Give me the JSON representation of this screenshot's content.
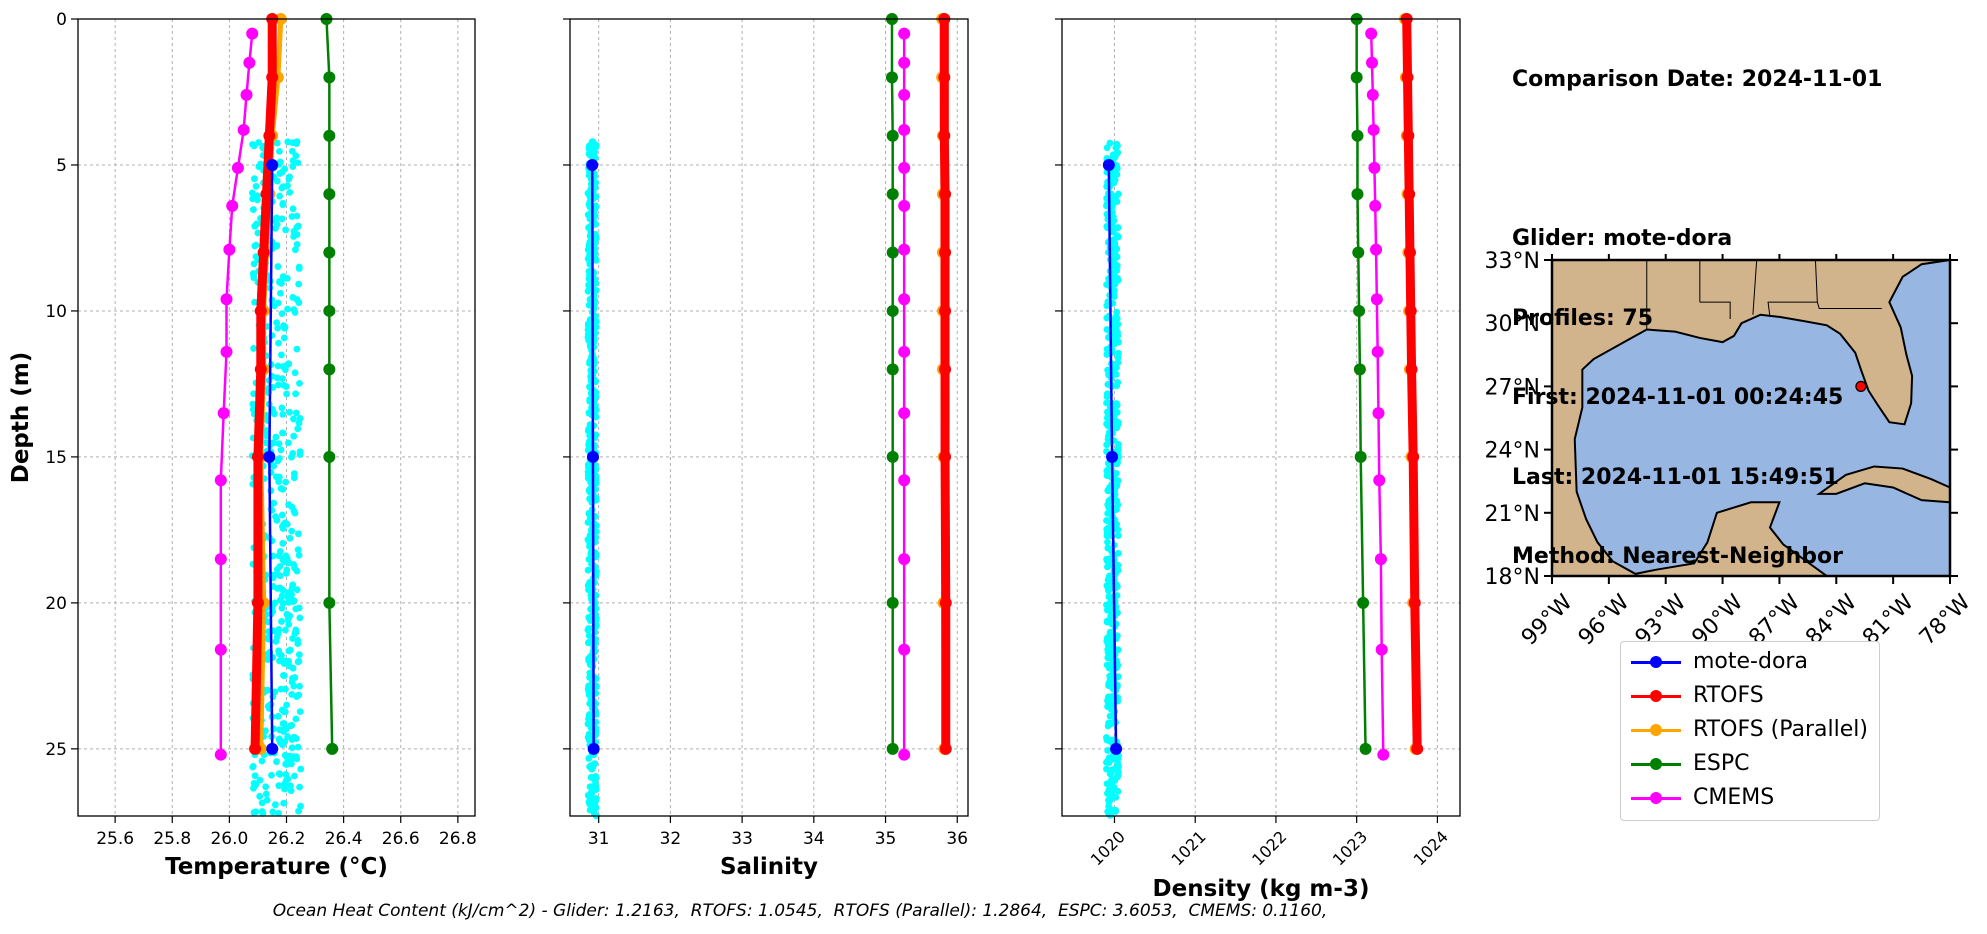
{
  "info": {
    "date_line": "Comparison Date: 2024-11-01",
    "glider_line": "Glider: mote-dora",
    "profiles_line": "Profiles: 75",
    "first_line": "First: 2024-11-01 00:24:45",
    "last_line": "Last: 2024-11-01 15:49:51",
    "method_line": "Method: Nearest-Neighbor"
  },
  "footer": "Ocean Heat Content (kJ/cm^2) - Glider: 1.2163,  RTOFS: 1.0545,  RTOFS (Parallel): 1.2864,  ESPC: 3.6053,  CMEMS: 0.1160,",
  "colors": {
    "glider_scatter": "#00ffff",
    "mote-dora": "#0000ff",
    "RTOFS": "#ff0000",
    "RTOFS (Parallel)": "#ffa500",
    "ESPC": "#008000",
    "CMEMS": "#ff00ff",
    "land": "#d2b48c",
    "ocean": "#97b6e1",
    "grid": "#b0b0b0",
    "station_marker": "#ff0000"
  },
  "legend": [
    "mote-dora",
    "RTOFS",
    "RTOFS (Parallel)",
    "ESPC",
    "CMEMS"
  ],
  "chart_data": [
    {
      "type": "line",
      "id": "temperature",
      "xlabel": "Temperature (°C)",
      "ylabel": "Depth (m)",
      "xlim": [
        25.47,
        26.86
      ],
      "ylim": [
        27.3,
        0
      ],
      "xticks": [
        25.6,
        25.8,
        26.0,
        26.2,
        26.4,
        26.6,
        26.8
      ],
      "xtick_labels": [
        "25.6",
        "25.8",
        "26.0",
        "26.2",
        "26.4",
        "26.6",
        "26.8"
      ],
      "yticks": [
        0,
        5,
        10,
        15,
        20,
        25
      ],
      "ytick_labels": [
        "0",
        "5",
        "10",
        "15",
        "20",
        "25"
      ],
      "grid": true,
      "glider_scatter": {
        "x_range": [
          26.08,
          26.25
        ],
        "depth_range": [
          4.2,
          27.3
        ]
      },
      "series": [
        {
          "name": "mote-dora",
          "depth": [
            5,
            15,
            25
          ],
          "values": [
            26.15,
            26.14,
            26.15
          ]
        },
        {
          "name": "RTOFS",
          "depth": [
            0,
            2,
            4,
            6,
            8,
            10,
            12,
            15,
            20,
            25
          ],
          "values": [
            26.15,
            26.15,
            26.14,
            26.13,
            26.12,
            26.11,
            26.11,
            26.1,
            26.1,
            26.09
          ]
        },
        {
          "name": "RTOFS (Parallel)",
          "depth": [
            0,
            2,
            4,
            6,
            8,
            10,
            12,
            15,
            20,
            25
          ],
          "values": [
            26.18,
            26.17,
            26.15,
            26.14,
            26.13,
            26.12,
            26.12,
            26.11,
            26.12,
            26.11
          ]
        },
        {
          "name": "ESPC",
          "depth": [
            0,
            2,
            4,
            6,
            8,
            10,
            12,
            15,
            20,
            25
          ],
          "values": [
            26.34,
            26.35,
            26.35,
            26.35,
            26.35,
            26.35,
            26.35,
            26.35,
            26.35,
            26.36
          ]
        },
        {
          "name": "CMEMS",
          "depth": [
            0.5,
            1.5,
            2.6,
            3.8,
            5.1,
            6.4,
            7.9,
            9.6,
            11.4,
            13.5,
            15.8,
            18.5,
            21.6,
            25.2
          ],
          "values": [
            26.08,
            26.07,
            26.06,
            26.05,
            26.03,
            26.01,
            26.0,
            25.99,
            25.99,
            25.98,
            25.97,
            25.97,
            25.97,
            25.97
          ]
        }
      ]
    },
    {
      "type": "line",
      "id": "salinity",
      "xlabel": "Salinity",
      "xlim": [
        30.6,
        36.15
      ],
      "ylim": [
        27.3,
        0
      ],
      "xticks": [
        31,
        32,
        33,
        34,
        35,
        36
      ],
      "xtick_labels": [
        "31",
        "32",
        "33",
        "34",
        "35",
        "36"
      ],
      "grid": true,
      "glider_scatter": {
        "x_range": [
          30.85,
          30.97
        ],
        "depth_range": [
          4.2,
          27.3
        ]
      },
      "series": [
        {
          "name": "mote-dora",
          "depth": [
            5,
            15,
            25
          ],
          "values": [
            30.91,
            30.92,
            30.93
          ]
        },
        {
          "name": "RTOFS",
          "depth": [
            0,
            2,
            4,
            6,
            8,
            10,
            12,
            15,
            20,
            25
          ],
          "values": [
            35.82,
            35.82,
            35.82,
            35.83,
            35.83,
            35.83,
            35.83,
            35.83,
            35.84,
            35.84
          ]
        },
        {
          "name": "RTOFS (Parallel)",
          "depth": [
            0,
            2,
            4,
            6,
            8,
            10,
            12,
            15,
            20,
            25
          ],
          "values": [
            35.79,
            35.79,
            35.8,
            35.8,
            35.8,
            35.8,
            35.8,
            35.81,
            35.81,
            35.82
          ]
        },
        {
          "name": "ESPC",
          "depth": [
            0,
            2,
            4,
            6,
            8,
            10,
            12,
            15,
            20,
            25
          ],
          "values": [
            35.09,
            35.09,
            35.1,
            35.1,
            35.1,
            35.1,
            35.1,
            35.1,
            35.1,
            35.1
          ]
        },
        {
          "name": "CMEMS",
          "depth": [
            0.5,
            1.5,
            2.6,
            3.8,
            5.1,
            6.4,
            7.9,
            9.6,
            11.4,
            13.5,
            15.8,
            18.5,
            21.6,
            25.2
          ],
          "values": [
            35.26,
            35.26,
            35.26,
            35.26,
            35.26,
            35.26,
            35.26,
            35.26,
            35.26,
            35.26,
            35.26,
            35.26,
            35.26,
            35.26
          ]
        }
      ]
    },
    {
      "type": "line",
      "id": "density",
      "xlabel": "Density (kg m-3)",
      "xlim": [
        1019.35,
        1024.28
      ],
      "ylim": [
        27.3,
        0
      ],
      "xticks": [
        1020,
        1021,
        1022,
        1023,
        1024
      ],
      "xtick_labels": [
        "1020",
        "1021",
        "1022",
        "1023",
        "1024"
      ],
      "grid": true,
      "glider_scatter": {
        "x_range": [
          1019.9,
          1020.05
        ],
        "depth_range": [
          4.2,
          27.3
        ]
      },
      "series": [
        {
          "name": "mote-dora",
          "depth": [
            5,
            15,
            25
          ],
          "values": [
            1019.93,
            1019.97,
            1020.02
          ]
        },
        {
          "name": "RTOFS",
          "depth": [
            0,
            2,
            4,
            6,
            8,
            10,
            12,
            15,
            20,
            25
          ],
          "values": [
            1023.62,
            1023.63,
            1023.64,
            1023.65,
            1023.66,
            1023.67,
            1023.68,
            1023.7,
            1023.72,
            1023.75
          ]
        },
        {
          "name": "RTOFS (Parallel)",
          "depth": [
            0,
            2,
            4,
            6,
            8,
            10,
            12,
            15,
            20,
            25
          ],
          "values": [
            1023.6,
            1023.61,
            1023.62,
            1023.63,
            1023.64,
            1023.65,
            1023.66,
            1023.68,
            1023.7,
            1023.73
          ]
        },
        {
          "name": "ESPC",
          "depth": [
            0,
            2,
            4,
            6,
            8,
            10,
            12,
            15,
            20,
            25
          ],
          "values": [
            1023.0,
            1023.0,
            1023.01,
            1023.01,
            1023.02,
            1023.03,
            1023.04,
            1023.05,
            1023.08,
            1023.11
          ]
        },
        {
          "name": "CMEMS",
          "depth": [
            0.5,
            1.5,
            2.6,
            3.8,
            5.1,
            6.4,
            7.9,
            9.6,
            11.4,
            13.5,
            15.8,
            18.5,
            21.6,
            25.2
          ],
          "values": [
            1023.18,
            1023.19,
            1023.2,
            1023.21,
            1023.22,
            1023.23,
            1023.24,
            1023.25,
            1023.26,
            1023.27,
            1023.28,
            1023.3,
            1023.31,
            1023.33
          ]
        }
      ]
    }
  ],
  "map": {
    "lon_ticks": [
      -99,
      -96,
      -93,
      -90,
      -87,
      -84,
      -81,
      -78
    ],
    "lon_labels": [
      "99°W",
      "96°W",
      "93°W",
      "90°W",
      "87°W",
      "84°W",
      "81°W",
      "78°W"
    ],
    "lat_ticks": [
      33,
      30,
      27,
      24,
      21,
      18
    ],
    "lat_labels": [
      "33°N",
      "30°N",
      "27°N",
      "24°N",
      "21°N",
      "18°N"
    ],
    "lon_range": [
      -99,
      -78
    ],
    "lat_range": [
      18,
      33
    ],
    "station": {
      "lon": -82.7,
      "lat": 27.0
    }
  }
}
